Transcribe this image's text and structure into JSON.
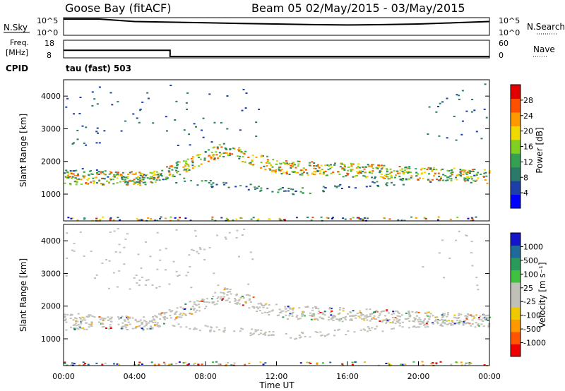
{
  "header": {
    "station": "Goose Bay (fitACF)",
    "beam_date": "Beam 05 02/May/2015 - 03/May/2015"
  },
  "panels": {
    "nsky": {
      "left_label": "N.Sky",
      "left_ticks": [
        "10^5",
        "10^0"
      ],
      "right_ticks": [
        "10^5",
        "10^0"
      ],
      "right_label": "N.Search"
    },
    "freq": {
      "left_label_1": "Freq.",
      "left_label_2": "[MHz]",
      "left_ticks": [
        "18",
        "8"
      ],
      "right_ticks": [
        "60",
        "0"
      ],
      "right_label": "Nave"
    },
    "cpid": {
      "label": "CPID",
      "value": "tau (fast) 503"
    }
  },
  "colors": {
    "power_scale": [
      "#0000ff",
      "#1c3fa8",
      "#2a7a6a",
      "#35a050",
      "#7fd020",
      "#f0d800",
      "#ff9900",
      "#ff5000",
      "#e00000"
    ],
    "velocity_scale": [
      "#ee0000",
      "#ff5500",
      "#ff9900",
      "#f0c800",
      "#c0c0b8",
      "#c0c0b8",
      "#40c040",
      "#2a9a5a",
      "#1f6a9a",
      "#1414c8"
    ],
    "line": "#000000",
    "ground_scatter": "#c0c0b8"
  },
  "chart_data": [
    {
      "type": "line",
      "title": "N.Sky / N.Search",
      "x": [
        "00:00",
        "02:00",
        "04:00",
        "06:00",
        "08:00",
        "10:00",
        "12:00",
        "14:00",
        "16:00",
        "18:00",
        "20:00",
        "22:00",
        "00:00"
      ],
      "series": [
        {
          "name": "N.Sky",
          "values": [
            5.0,
            5.0,
            4.2,
            4.0,
            3.8,
            3.6,
            3.4,
            3.2,
            3.1,
            3.2,
            3.4,
            3.8,
            4.2
          ]
        }
      ],
      "ylim": [
        0,
        5
      ]
    },
    {
      "type": "line",
      "title": "Freq / Nave",
      "x": [
        "00:00",
        "06:00",
        "06:00",
        "24:00"
      ],
      "series": [
        {
          "name": "Freq.",
          "values": [
            12,
            12,
            8,
            8
          ]
        }
      ],
      "ylim": [
        8,
        18
      ]
    },
    {
      "type": "heatmap",
      "xlabel": "",
      "ylabel": "Slant Range [km]",
      "xlim": [
        0,
        24
      ],
      "ylim": [
        180,
        4500
      ],
      "y_ticks": [
        "1000",
        "2000",
        "3000",
        "4000"
      ],
      "colorbar_label": "Power [dB]",
      "colorbar_ticks": [
        "28",
        "24",
        "20",
        "16",
        "12",
        "8",
        "4"
      ],
      "colorbar_range": [
        0,
        30
      ]
    },
    {
      "type": "heatmap",
      "xlabel": "Time UT",
      "ylabel": "Slant Range [km]",
      "xlim": [
        0,
        24
      ],
      "ylim": [
        180,
        4500
      ],
      "x_ticks": [
        "00:00",
        "04:00",
        "08:00",
        "12:00",
        "16:00",
        "20:00",
        "00:00"
      ],
      "y_ticks": [
        "1000",
        "2000",
        "3000",
        "4000"
      ],
      "colorbar_label": "Velocity [m s⁻¹]",
      "colorbar_ticks": [
        "1000",
        "500",
        "100",
        "25",
        "-25",
        "-100",
        "-500",
        "-1000"
      ]
    }
  ]
}
